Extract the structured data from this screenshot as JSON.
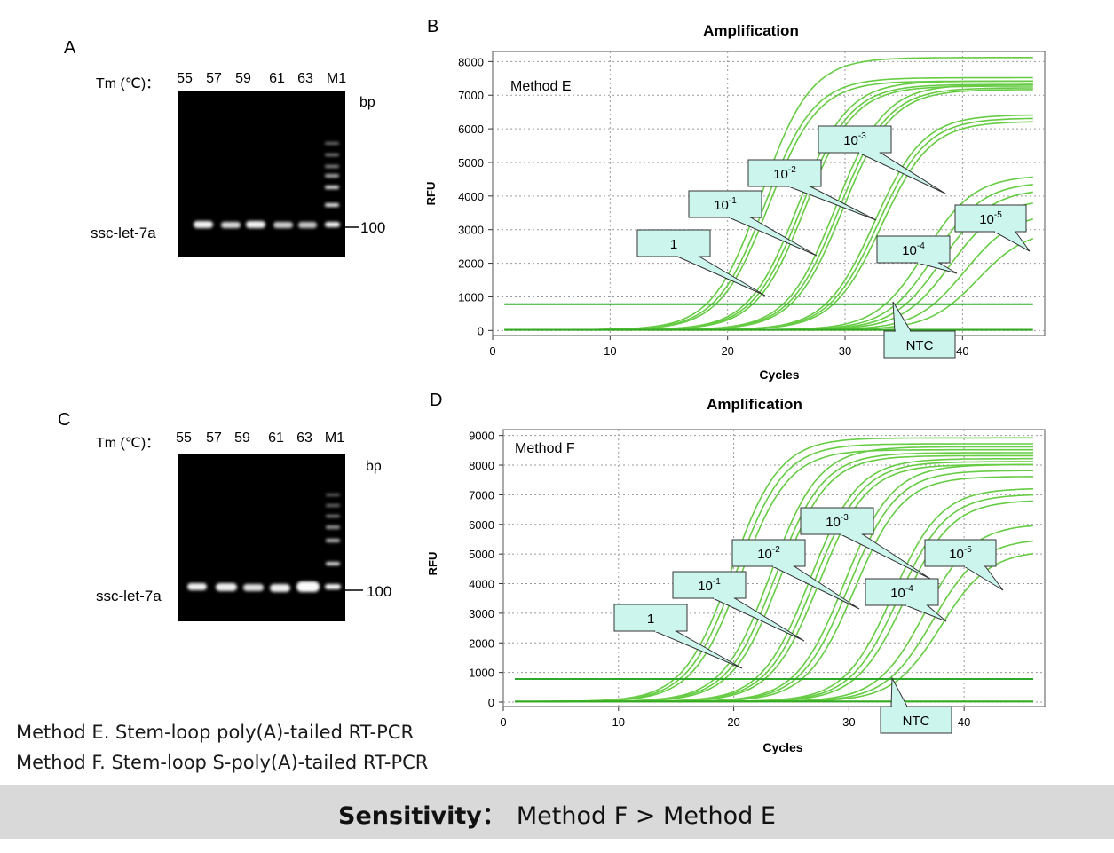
{
  "panels": {
    "A": {
      "letter": "A",
      "tm_label": "Tm (℃)：",
      "lanes": [
        "55",
        "57",
        "59",
        "61",
        "63",
        "M1"
      ],
      "bp": "bp",
      "size_label": "100",
      "target": "ssc-let-7a"
    },
    "C": {
      "letter": "C",
      "tm_label": "Tm (℃)：",
      "lanes": [
        "55",
        "57",
        "59",
        "61",
        "63",
        "M1"
      ],
      "bp": "bp",
      "size_label": "100",
      "target": "ssc-let-7a"
    },
    "B": {
      "letter": "B"
    },
    "D": {
      "letter": "D"
    }
  },
  "chart_data": [
    {
      "panel": "B",
      "type": "line",
      "title": "Amplification",
      "method": "Method E",
      "xlabel": "Cycles",
      "ylabel": "RFU",
      "xlim": [
        0,
        47
      ],
      "ylim": [
        -150,
        8300
      ],
      "xticks": [
        0,
        10,
        20,
        30,
        40
      ],
      "yticks": [
        0,
        1000,
        2000,
        3000,
        4000,
        5000,
        6000,
        7000,
        8000
      ],
      "grid": true,
      "threshold": 780,
      "curve_color": "#66cc44",
      "series": [
        {
          "name": "1",
          "ct": [
            22.9,
            23.2,
            23.5
          ],
          "plateau": [
            8100,
            7500,
            7400
          ]
        },
        {
          "name": "10-1",
          "ct": [
            26.0,
            26.3,
            26.6
          ],
          "plateau": [
            7400,
            7300,
            7250
          ]
        },
        {
          "name": "10-2",
          "ct": [
            29.2,
            29.5,
            29.8
          ],
          "plateau": [
            7300,
            7200,
            7150
          ]
        },
        {
          "name": "10-3",
          "ct": [
            32.5,
            32.8,
            33.1
          ],
          "plateau": [
            6400,
            6300,
            6200
          ]
        },
        {
          "name": "10-4",
          "ct": [
            36.8,
            37.6,
            38.3
          ],
          "plateau": [
            4600,
            4400,
            4200
          ]
        },
        {
          "name": "10-5",
          "ct": [
            39.0,
            40.2,
            41.3
          ],
          "plateau": [
            3900,
            3500,
            3000
          ]
        },
        {
          "name": "NTC",
          "ct": [],
          "plateau": []
        }
      ],
      "annotations": [
        {
          "label": "1",
          "base": "1",
          "exp": ""
        },
        {
          "label": "10-1",
          "base": "10",
          "exp": "-1"
        },
        {
          "label": "10-2",
          "base": "10",
          "exp": "-2"
        },
        {
          "label": "10-3",
          "base": "10",
          "exp": "-3"
        },
        {
          "label": "10-4",
          "base": "10",
          "exp": "-4"
        },
        {
          "label": "10-5",
          "base": "10",
          "exp": "-5"
        },
        {
          "label": "NTC",
          "base": "NTC",
          "exp": ""
        }
      ]
    },
    {
      "panel": "D",
      "type": "line",
      "title": "Amplification",
      "method": "Method F",
      "xlabel": "Cycles",
      "ylabel": "RFU",
      "xlim": [
        0,
        47
      ],
      "ylim": [
        -150,
        9200
      ],
      "xticks": [
        0,
        10,
        20,
        30,
        40
      ],
      "yticks": [
        0,
        1000,
        2000,
        3000,
        4000,
        5000,
        6000,
        7000,
        8000,
        9000
      ],
      "grid": true,
      "threshold": 780,
      "curve_color": "#66cc44",
      "series": [
        {
          "name": "1",
          "ct": [
            19.8,
            20.2,
            20.6
          ],
          "plateau": [
            8900,
            8700,
            8500
          ]
        },
        {
          "name": "10-1",
          "ct": [
            23.2,
            23.6,
            24.0
          ],
          "plateau": [
            8600,
            8400,
            8300
          ]
        },
        {
          "name": "10-2",
          "ct": [
            26.6,
            27.0,
            27.4
          ],
          "plateau": [
            8200,
            8100,
            8000
          ]
        },
        {
          "name": "10-3",
          "ct": [
            29.6,
            30.0,
            30.5
          ],
          "plateau": [
            8000,
            7800,
            7600
          ]
        },
        {
          "name": "10-4",
          "ct": [
            33.8,
            34.3,
            34.8
          ],
          "plateau": [
            7200,
            7000,
            6800
          ]
        },
        {
          "name": "10-5",
          "ct": [
            36.6,
            37.3,
            38.0
          ],
          "plateau": [
            6000,
            5500,
            5100
          ]
        },
        {
          "name": "NTC",
          "ct": [],
          "plateau": []
        }
      ],
      "annotations": [
        {
          "label": "1",
          "base": "1",
          "exp": ""
        },
        {
          "label": "10-1",
          "base": "10",
          "exp": "-1"
        },
        {
          "label": "10-2",
          "base": "10",
          "exp": "-2"
        },
        {
          "label": "10-3",
          "base": "10",
          "exp": "-3"
        },
        {
          "label": "10-4",
          "base": "10",
          "exp": "-4"
        },
        {
          "label": "10-5",
          "base": "10",
          "exp": "-5"
        },
        {
          "label": "NTC",
          "base": "NTC",
          "exp": ""
        }
      ]
    }
  ],
  "legend": {
    "line_e": "Method E. Stem-loop poly(A)-tailed RT-PCR",
    "line_f": "Method F. Stem-loop S-poly(A)-tailed RT-PCR"
  },
  "footer": {
    "bold": "Sensitivity：",
    "rest": "Method F > Method E"
  }
}
